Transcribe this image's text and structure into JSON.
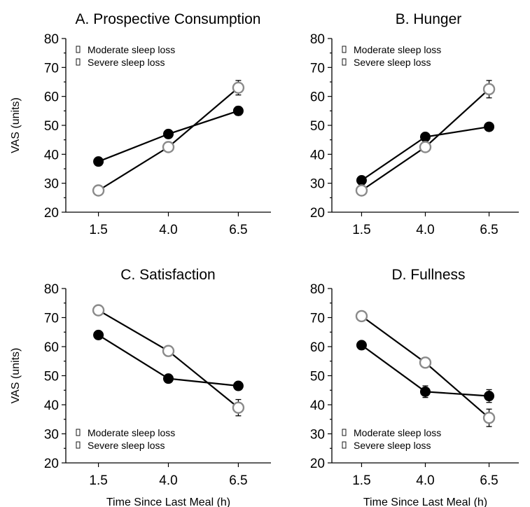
{
  "chart_data": [
    {
      "type": "line",
      "title": "A. Prospective Consumption",
      "ylabel": "VAS (units)",
      "xlabel": "",
      "categories": [
        "1.5",
        "4.0",
        "6.5"
      ],
      "ylim": [
        20,
        80
      ],
      "yticks": [
        "20",
        "30",
        "40",
        "50",
        "60",
        "70",
        "80"
      ],
      "legend_position": "top-left",
      "series": [
        {
          "name": "Moderate sleep loss",
          "marker": "filled",
          "values": [
            37.5,
            47,
            55
          ],
          "errors": [
            0.8,
            1.0,
            1.5
          ]
        },
        {
          "name": "Severe sleep loss",
          "marker": "open",
          "values": [
            27.5,
            42.5,
            63
          ],
          "errors": [
            0.8,
            1.0,
            2.5
          ]
        }
      ]
    },
    {
      "type": "line",
      "title": "B. Hunger",
      "ylabel": "",
      "xlabel": "",
      "categories": [
        "1.5",
        "4.0",
        "6.5"
      ],
      "ylim": [
        20,
        80
      ],
      "yticks": [
        "20",
        "30",
        "40",
        "50",
        "60",
        "70",
        "80"
      ],
      "legend_position": "top-left",
      "series": [
        {
          "name": "Moderate sleep loss",
          "marker": "filled",
          "values": [
            31,
            46,
            49.5
          ],
          "errors": [
            0.8,
            1.0,
            1.0
          ]
        },
        {
          "name": "Severe sleep loss",
          "marker": "open",
          "values": [
            27.5,
            42.5,
            62.5
          ],
          "errors": [
            0.8,
            1.0,
            3.0
          ]
        }
      ]
    },
    {
      "type": "line",
      "title": "C. Satisfaction",
      "ylabel": "VAS (units)",
      "xlabel": "Time Since Last Meal (h)",
      "categories": [
        "1.5",
        "4.0",
        "6.5"
      ],
      "ylim": [
        20,
        80
      ],
      "yticks": [
        "20",
        "30",
        "40",
        "50",
        "60",
        "70",
        "80"
      ],
      "legend_position": "bottom-left",
      "series": [
        {
          "name": "Moderate sleep loss",
          "marker": "filled",
          "values": [
            64,
            49,
            46.5
          ],
          "errors": [
            0.8,
            1.0,
            1.0
          ]
        },
        {
          "name": "Severe sleep loss",
          "marker": "open",
          "values": [
            72.5,
            58.5,
            39
          ],
          "errors": [
            0.8,
            1.0,
            2.8
          ]
        }
      ]
    },
    {
      "type": "line",
      "title": "D. Fullness",
      "ylabel": "",
      "xlabel": "Time Since Last Meal (h)",
      "categories": [
        "1.5",
        "4.0",
        "6.5"
      ],
      "ylim": [
        20,
        80
      ],
      "yticks": [
        "20",
        "30",
        "40",
        "50",
        "60",
        "70",
        "80"
      ],
      "legend_position": "bottom-left",
      "series": [
        {
          "name": "Moderate sleep loss",
          "marker": "filled",
          "values": [
            60.5,
            44.5,
            43
          ],
          "errors": [
            0.8,
            2.0,
            2.2
          ]
        },
        {
          "name": "Severe sleep loss",
          "marker": "open",
          "values": [
            70.5,
            54.5,
            35.5
          ],
          "errors": [
            0.8,
            1.0,
            3.0
          ]
        }
      ]
    }
  ]
}
